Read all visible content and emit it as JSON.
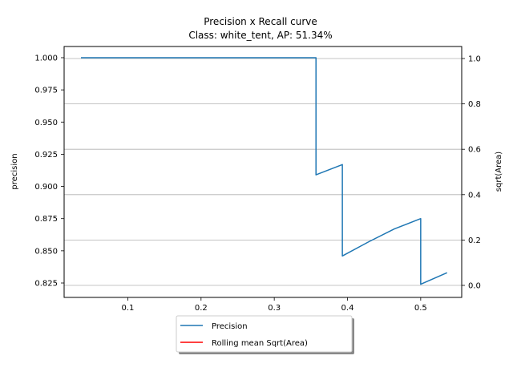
{
  "chart_data": {
    "type": "line",
    "title": "Precision x Recall curve",
    "subtitle": "Class: white_tent, AP: 51.34%",
    "xlabel": "",
    "ylabel": "precision",
    "ylabel_right": "sqrt(Area)",
    "xlim": [
      0.013,
      0.556
    ],
    "ylim": [
      0.8138,
      1.0087
    ],
    "ylim_right": [
      -0.053,
      1.053
    ],
    "x_ticks": [
      0.1,
      0.2,
      0.3,
      0.4,
      0.5
    ],
    "y_ticks": [
      0.825,
      0.85,
      0.875,
      0.9,
      0.925,
      0.95,
      0.975,
      1.0
    ],
    "y_ticks_right": [
      0.0,
      0.2,
      0.4,
      0.6,
      0.8,
      1.0
    ],
    "grid": "right-axis horizontal gridlines",
    "legend_position": "bottom-center, below axes",
    "series": [
      {
        "name": "Precision",
        "color": "#1f77b4",
        "x": [
          0.036,
          0.357,
          0.357,
          0.393,
          0.393,
          0.429,
          0.464,
          0.5,
          0.5,
          0.536
        ],
        "y": [
          1.0,
          1.0,
          0.909,
          0.917,
          0.846,
          0.857,
          0.867,
          0.875,
          0.824,
          0.833
        ]
      },
      {
        "name": "Rolling mean Sqrt(Area)",
        "color": "#ff0000",
        "x": [],
        "y": []
      }
    ]
  }
}
